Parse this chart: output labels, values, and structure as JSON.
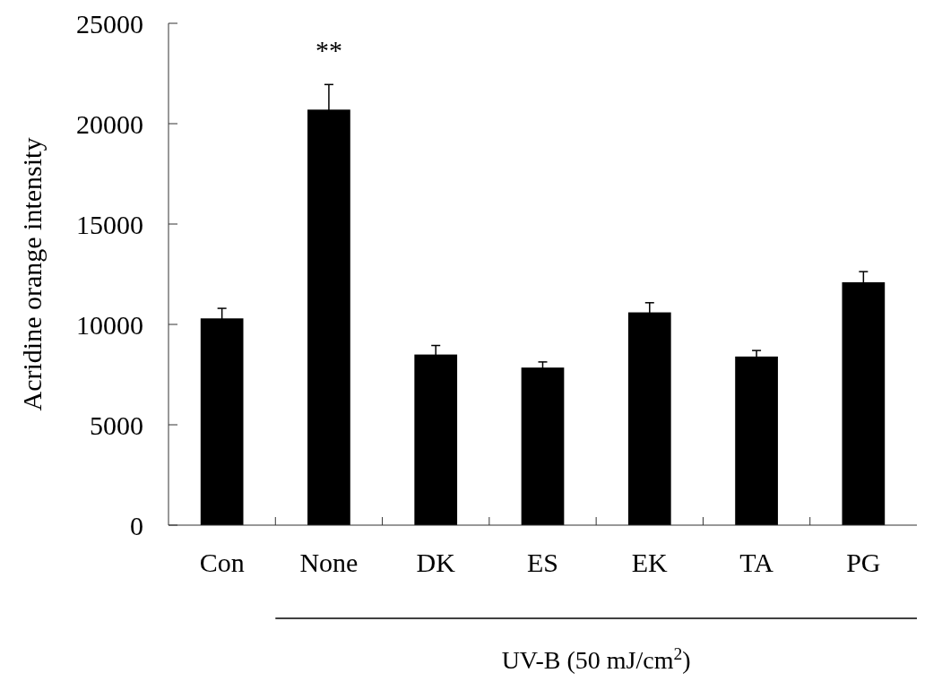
{
  "chart_data": {
    "type": "bar",
    "ylabel": "Acridine orange intensity",
    "xlabel": "UV-B (50 mJ/cm$^{2}$)",
    "categories": [
      "Con",
      "None",
      "DK",
      "ES",
      "EK",
      "TA",
      "PG"
    ],
    "values": [
      10300,
      20700,
      8500,
      7850,
      10600,
      8400,
      12100
    ],
    "errors": [
      500,
      1250,
      450,
      280,
      480,
      300,
      530
    ],
    "color": "#000000",
    "ylim": [
      0,
      25000
    ],
    "yticks": [
      0,
      5000,
      10000,
      15000,
      20000,
      25000
    ],
    "annotations": [
      {
        "text": "**",
        "x": "None",
        "y": 21950
      }
    ],
    "grid": false
  }
}
